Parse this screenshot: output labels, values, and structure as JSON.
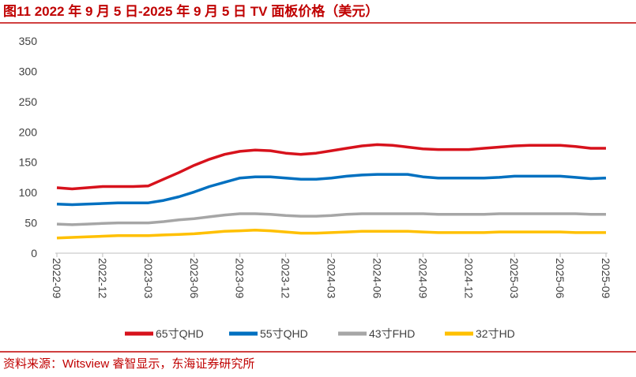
{
  "chart_data": {
    "type": "line",
    "title": "图11  2022 年 9 月 5 日-2025 年 9 月 5 日 TV 面板价格（美元）",
    "source": "资料来源：Witsview 睿智显示，东海证券研究所",
    "categories": [
      "2022-09",
      null,
      null,
      "2022-12",
      null,
      null,
      "2023-03",
      null,
      null,
      "2023-06",
      null,
      null,
      "2023-09",
      null,
      null,
      "2023-12",
      null,
      null,
      "2024-03",
      null,
      null,
      "2024-06",
      null,
      null,
      "2024-09",
      null,
      null,
      "2024-12",
      null,
      null,
      "2025-03",
      null,
      null,
      "2025-06",
      null,
      null,
      "2025-09"
    ],
    "series": [
      {
        "name": "65寸QHD",
        "color": "#d7121c",
        "values": [
          108,
          106,
          108,
          110,
          110,
          110,
          111,
          122,
          133,
          145,
          155,
          163,
          168,
          170,
          169,
          165,
          163,
          165,
          169,
          173,
          177,
          179,
          178,
          175,
          172,
          171,
          171,
          171,
          173,
          175,
          177,
          178,
          178,
          178,
          176,
          173,
          173
        ]
      },
      {
        "name": "55寸QHD",
        "color": "#0070c0",
        "values": [
          81,
          80,
          81,
          82,
          83,
          83,
          83,
          87,
          93,
          101,
          110,
          117,
          124,
          126,
          126,
          124,
          122,
          122,
          124,
          127,
          129,
          130,
          130,
          130,
          126,
          124,
          124,
          124,
          124,
          125,
          127,
          127,
          127,
          127,
          125,
          123,
          124
        ]
      },
      {
        "name": "43寸FHD",
        "color": "#a6a6a6",
        "values": [
          48,
          47,
          48,
          49,
          50,
          50,
          50,
          52,
          55,
          57,
          60,
          63,
          65,
          65,
          64,
          62,
          61,
          61,
          62,
          64,
          65,
          65,
          65,
          65,
          65,
          64,
          64,
          64,
          64,
          65,
          65,
          65,
          65,
          65,
          65,
          64,
          64
        ]
      },
      {
        "name": "32寸HD",
        "color": "#ffc000",
        "values": [
          25,
          26,
          27,
          28,
          29,
          29,
          29,
          30,
          31,
          32,
          34,
          36,
          37,
          38,
          37,
          35,
          33,
          33,
          34,
          35,
          36,
          36,
          36,
          36,
          35,
          34,
          34,
          34,
          34,
          35,
          35,
          35,
          35,
          35,
          34,
          34,
          34
        ]
      }
    ],
    "ylim": [
      0,
      350
    ],
    "yticks": [
      0,
      50,
      100,
      150,
      200,
      250,
      300,
      350
    ]
  }
}
